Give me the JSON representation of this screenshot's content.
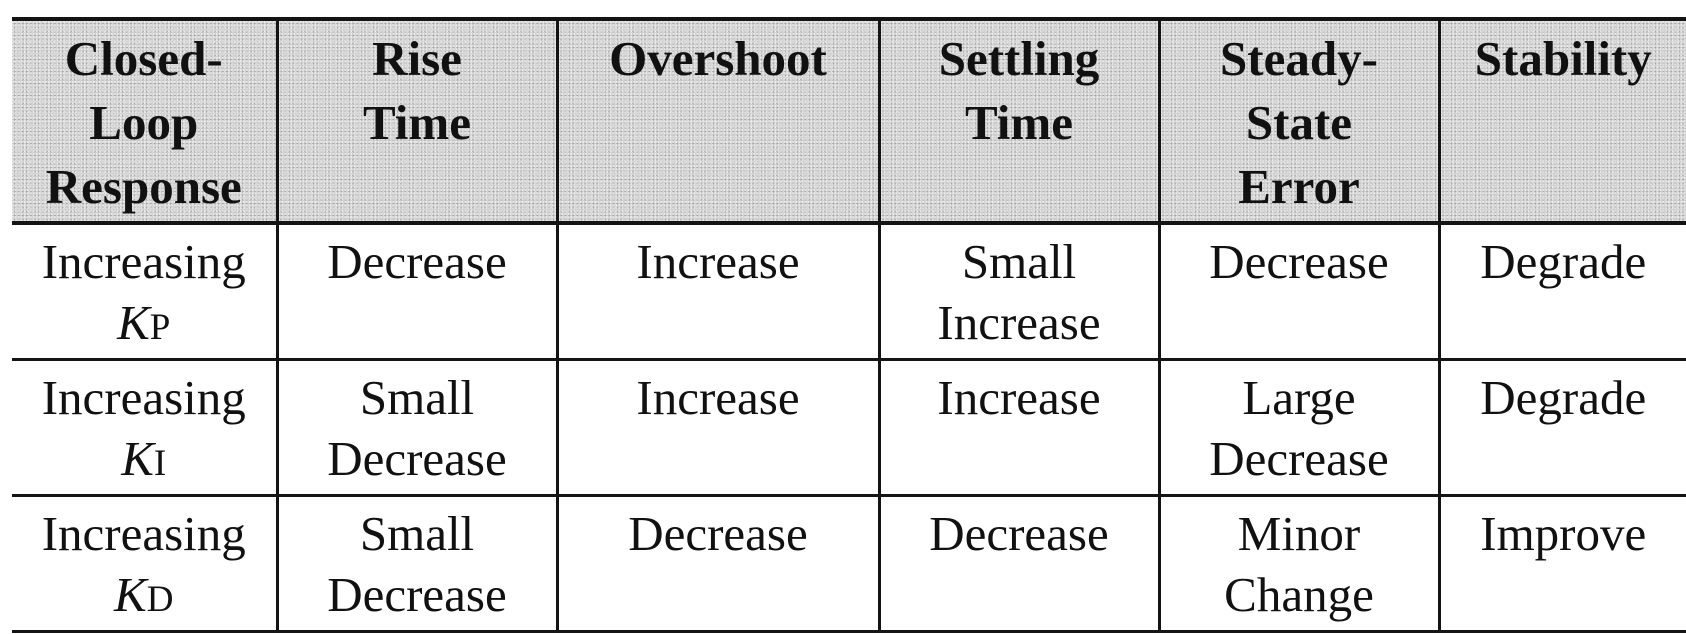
{
  "table": {
    "headers": [
      {
        "lines": [
          "Closed-",
          "Loop",
          "Response"
        ]
      },
      {
        "lines": [
          "Rise",
          "Time"
        ]
      },
      {
        "lines": [
          "Overshoot"
        ]
      },
      {
        "lines": [
          "Settling",
          "Time"
        ]
      },
      {
        "lines": [
          "Steady-",
          "State",
          "Error"
        ]
      },
      {
        "lines": [
          "Stability"
        ]
      }
    ],
    "rows": [
      {
        "action": "Increasing",
        "gain": {
          "symbol": "K",
          "subscript": "P"
        },
        "cells": [
          {
            "lines": [
              "Decrease"
            ]
          },
          {
            "lines": [
              "Increase"
            ]
          },
          {
            "lines": [
              "Small",
              "Increase"
            ]
          },
          {
            "lines": [
              "Decrease"
            ]
          },
          {
            "lines": [
              "Degrade"
            ]
          }
        ]
      },
      {
        "action": "Increasing",
        "gain": {
          "symbol": "K",
          "subscript": "I"
        },
        "cells": [
          {
            "lines": [
              "Small",
              "Decrease"
            ]
          },
          {
            "lines": [
              "Increase"
            ]
          },
          {
            "lines": [
              "Increase"
            ]
          },
          {
            "lines": [
              "Large",
              "Decrease"
            ]
          },
          {
            "lines": [
              "Degrade"
            ]
          }
        ]
      },
      {
        "action": "Increasing",
        "gain": {
          "symbol": "K",
          "subscript": "D"
        },
        "cells": [
          {
            "lines": [
              "Small",
              "Decrease"
            ]
          },
          {
            "lines": [
              "Decrease"
            ]
          },
          {
            "lines": [
              "Decrease"
            ]
          },
          {
            "lines": [
              "Minor",
              "Change"
            ]
          },
          {
            "lines": [
              "Improve"
            ]
          }
        ]
      }
    ]
  },
  "colors": {
    "header_background": "#d2d2d2",
    "rule_color": "#141414",
    "text_color": "#111111"
  }
}
